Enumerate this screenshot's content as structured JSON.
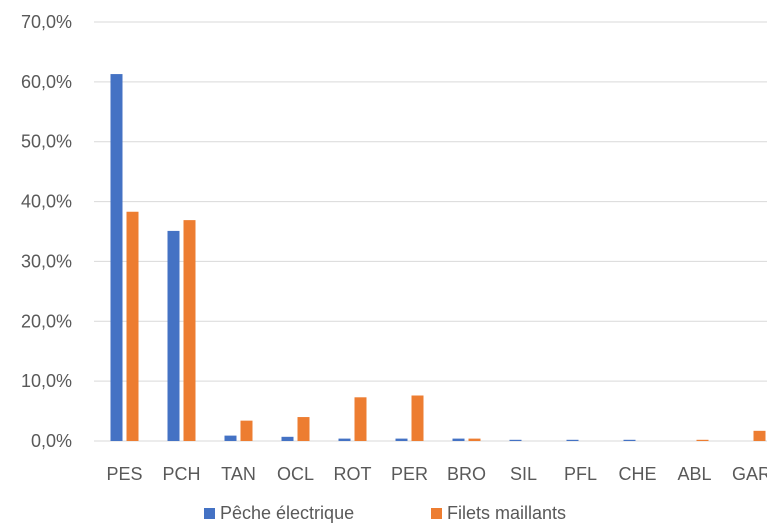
{
  "chart_data": {
    "type": "bar",
    "title": "",
    "xlabel": "",
    "ylabel": "",
    "ylim": [
      0,
      70
    ],
    "yticks": [
      "0,0%",
      "10,0%",
      "20,0%",
      "30,0%",
      "40,0%",
      "50,0%",
      "60,0%",
      "70,0%"
    ],
    "ytick_values": [
      0,
      10,
      20,
      30,
      40,
      50,
      60,
      70
    ],
    "grid": true,
    "legend_position": "bottom",
    "categories": [
      "PES",
      "PCH",
      "TAN",
      "OCL",
      "ROT",
      "PER",
      "BRO",
      "SIL",
      "PFL",
      "CHE",
      "ABL",
      "GAR"
    ],
    "series": [
      {
        "name": "Pêche électrique",
        "color": "#4472C4",
        "values": [
          61.3,
          35.1,
          0.9,
          0.7,
          0.4,
          0.4,
          0.4,
          0.2,
          0.2,
          0.2,
          0.0,
          0.0
        ]
      },
      {
        "name": "Filets maillants",
        "color": "#ED7D31",
        "values": [
          38.3,
          36.9,
          3.4,
          4.0,
          7.3,
          7.6,
          0.4,
          0.0,
          0.0,
          0.0,
          0.2,
          1.7
        ]
      }
    ]
  }
}
